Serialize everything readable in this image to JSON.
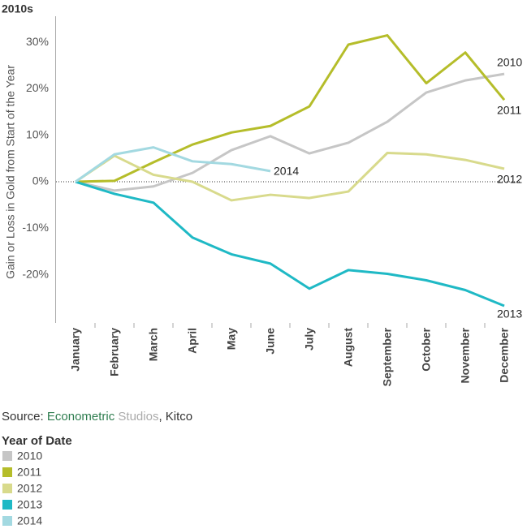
{
  "chart_data": {
    "type": "line",
    "title": "2010s",
    "y_label": "Gain or Loss in Gold from Start of the Year",
    "categories": [
      "January",
      "February",
      "March",
      "April",
      "May",
      "June",
      "July",
      "August",
      "September",
      "October",
      "November",
      "December"
    ],
    "series": [
      {
        "name": "2010",
        "color": "#c6c6c6",
        "values": [
          0,
          -1.9,
          -1,
          1.9,
          6.8,
          9.8,
          6.1,
          8.4,
          12.9,
          19.2,
          21.8,
          23.2
        ]
      },
      {
        "name": "2011",
        "color": "#b5bd2a",
        "values": [
          0,
          0.2,
          4.2,
          8,
          10.6,
          12,
          16.2,
          29.5,
          31.5,
          21.2,
          27.8,
          17.6
        ]
      },
      {
        "name": "2012",
        "color": "#d8da8c",
        "values": [
          0,
          5.6,
          1.5,
          0,
          -4,
          -2.8,
          -3.5,
          -2.1,
          6.2,
          5.9,
          4.7,
          2.8
        ]
      },
      {
        "name": "2013",
        "color": "#1fb9c5",
        "values": [
          0,
          -2.6,
          -4.5,
          -12,
          -15.6,
          -17.6,
          -23,
          -19,
          -19.8,
          -21.2,
          -23.3,
          -26.7
        ]
      },
      {
        "name": "2014",
        "color": "#a3d9e1",
        "values": [
          0,
          5.9,
          7.4,
          4.4,
          3.8,
          2.3,
          null,
          null,
          null,
          null,
          null,
          null
        ]
      }
    ],
    "ylim": [
      -30,
      35
    ],
    "yticks": [
      {
        "value": 30,
        "label": "30%"
      },
      {
        "value": 20,
        "label": "20%"
      },
      {
        "value": 10,
        "label": "10%"
      },
      {
        "value": 0,
        "label": "0%"
      },
      {
        "value": -10,
        "label": "-10%"
      },
      {
        "value": -20,
        "label": "-20%"
      }
    ],
    "source": {
      "prefix": "Source:",
      "part1": "Econometric",
      "part2": "Studios",
      "suffix": ", Kitco"
    },
    "legend_title": "Year of Date"
  }
}
